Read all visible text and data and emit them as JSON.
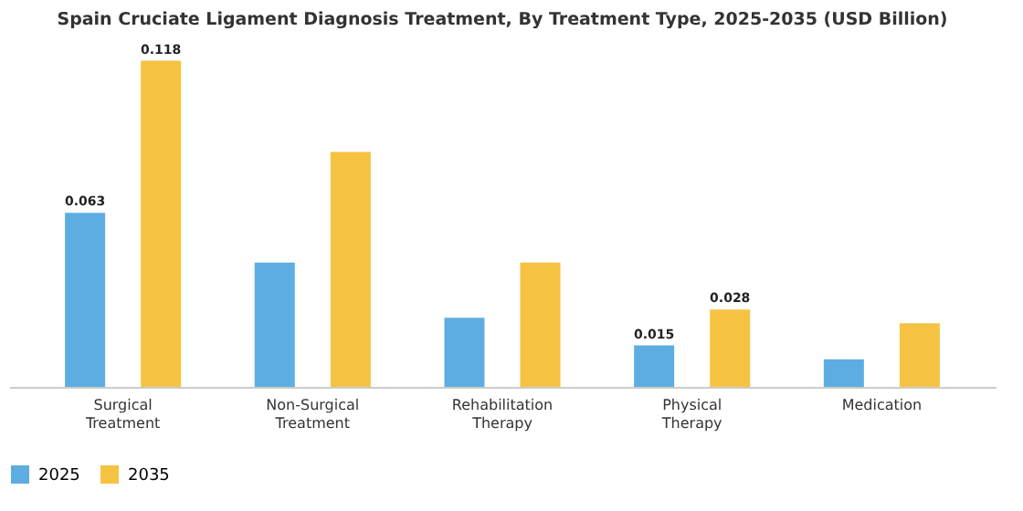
{
  "chart_data": {
    "type": "bar",
    "title": "Spain Cruciate Ligament Diagnosis Treatment, By Treatment Type, 2025-2035 (USD Billion)",
    "categories": [
      "Surgical Treatment",
      "Non-Surgical Treatment",
      "Rehabilitation Therapy",
      "Physical Therapy",
      "Medication"
    ],
    "series": [
      {
        "name": "2025",
        "color": "#5dade2",
        "values": [
          0.063,
          0.045,
          0.025,
          0.015,
          0.01
        ],
        "value_labels": [
          "0.063",
          null,
          null,
          "0.015",
          null
        ]
      },
      {
        "name": "2035",
        "color": "#f5c242",
        "values": [
          0.118,
          0.085,
          0.045,
          0.028,
          0.023
        ],
        "value_labels": [
          "0.118",
          null,
          null,
          "0.028",
          null
        ]
      }
    ],
    "legend": "bottom",
    "grid": false
  }
}
